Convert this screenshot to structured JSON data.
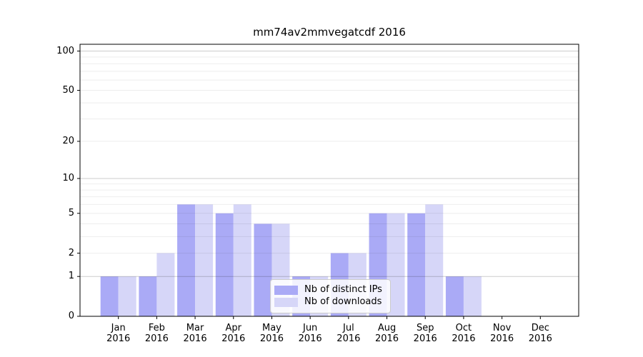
{
  "chart_data": {
    "type": "bar",
    "title": "mm74av2mmvegatcdf 2016",
    "categories": [
      "Jan",
      "Feb",
      "Mar",
      "Apr",
      "May",
      "Jun",
      "Jul",
      "Aug",
      "Sep",
      "Oct",
      "Nov",
      "Dec"
    ],
    "category_year": "2016",
    "series": [
      {
        "name": "Nb of distinct IPs",
        "color": "#aaaaf6",
        "values": [
          1,
          1,
          6,
          5,
          4,
          1,
          2,
          5,
          5,
          1,
          0,
          0
        ]
      },
      {
        "name": "Nb of downloads",
        "color": "#d6d6f8",
        "values": [
          1,
          2,
          6,
          6,
          4,
          1,
          2,
          5,
          6,
          1,
          0,
          0
        ]
      }
    ],
    "yticks": [
      0,
      1,
      2,
      5,
      10,
      20,
      50,
      100
    ],
    "minor_gridlines": [
      2,
      3,
      4,
      5,
      6,
      7,
      8,
      9,
      20,
      30,
      40,
      50,
      60,
      70,
      80,
      90
    ],
    "major_gridlines": [
      1,
      10,
      100
    ],
    "scale": "log1p",
    "ylim": [
      0,
      100
    ],
    "grid": "horizontal",
    "legend_position": "inside lower center"
  },
  "colors": {
    "axis": "#000000",
    "major_grid": "rgba(0,0,0,0.20)",
    "minor_grid": "rgba(0,0,0,0.07)",
    "text": "#000000"
  }
}
